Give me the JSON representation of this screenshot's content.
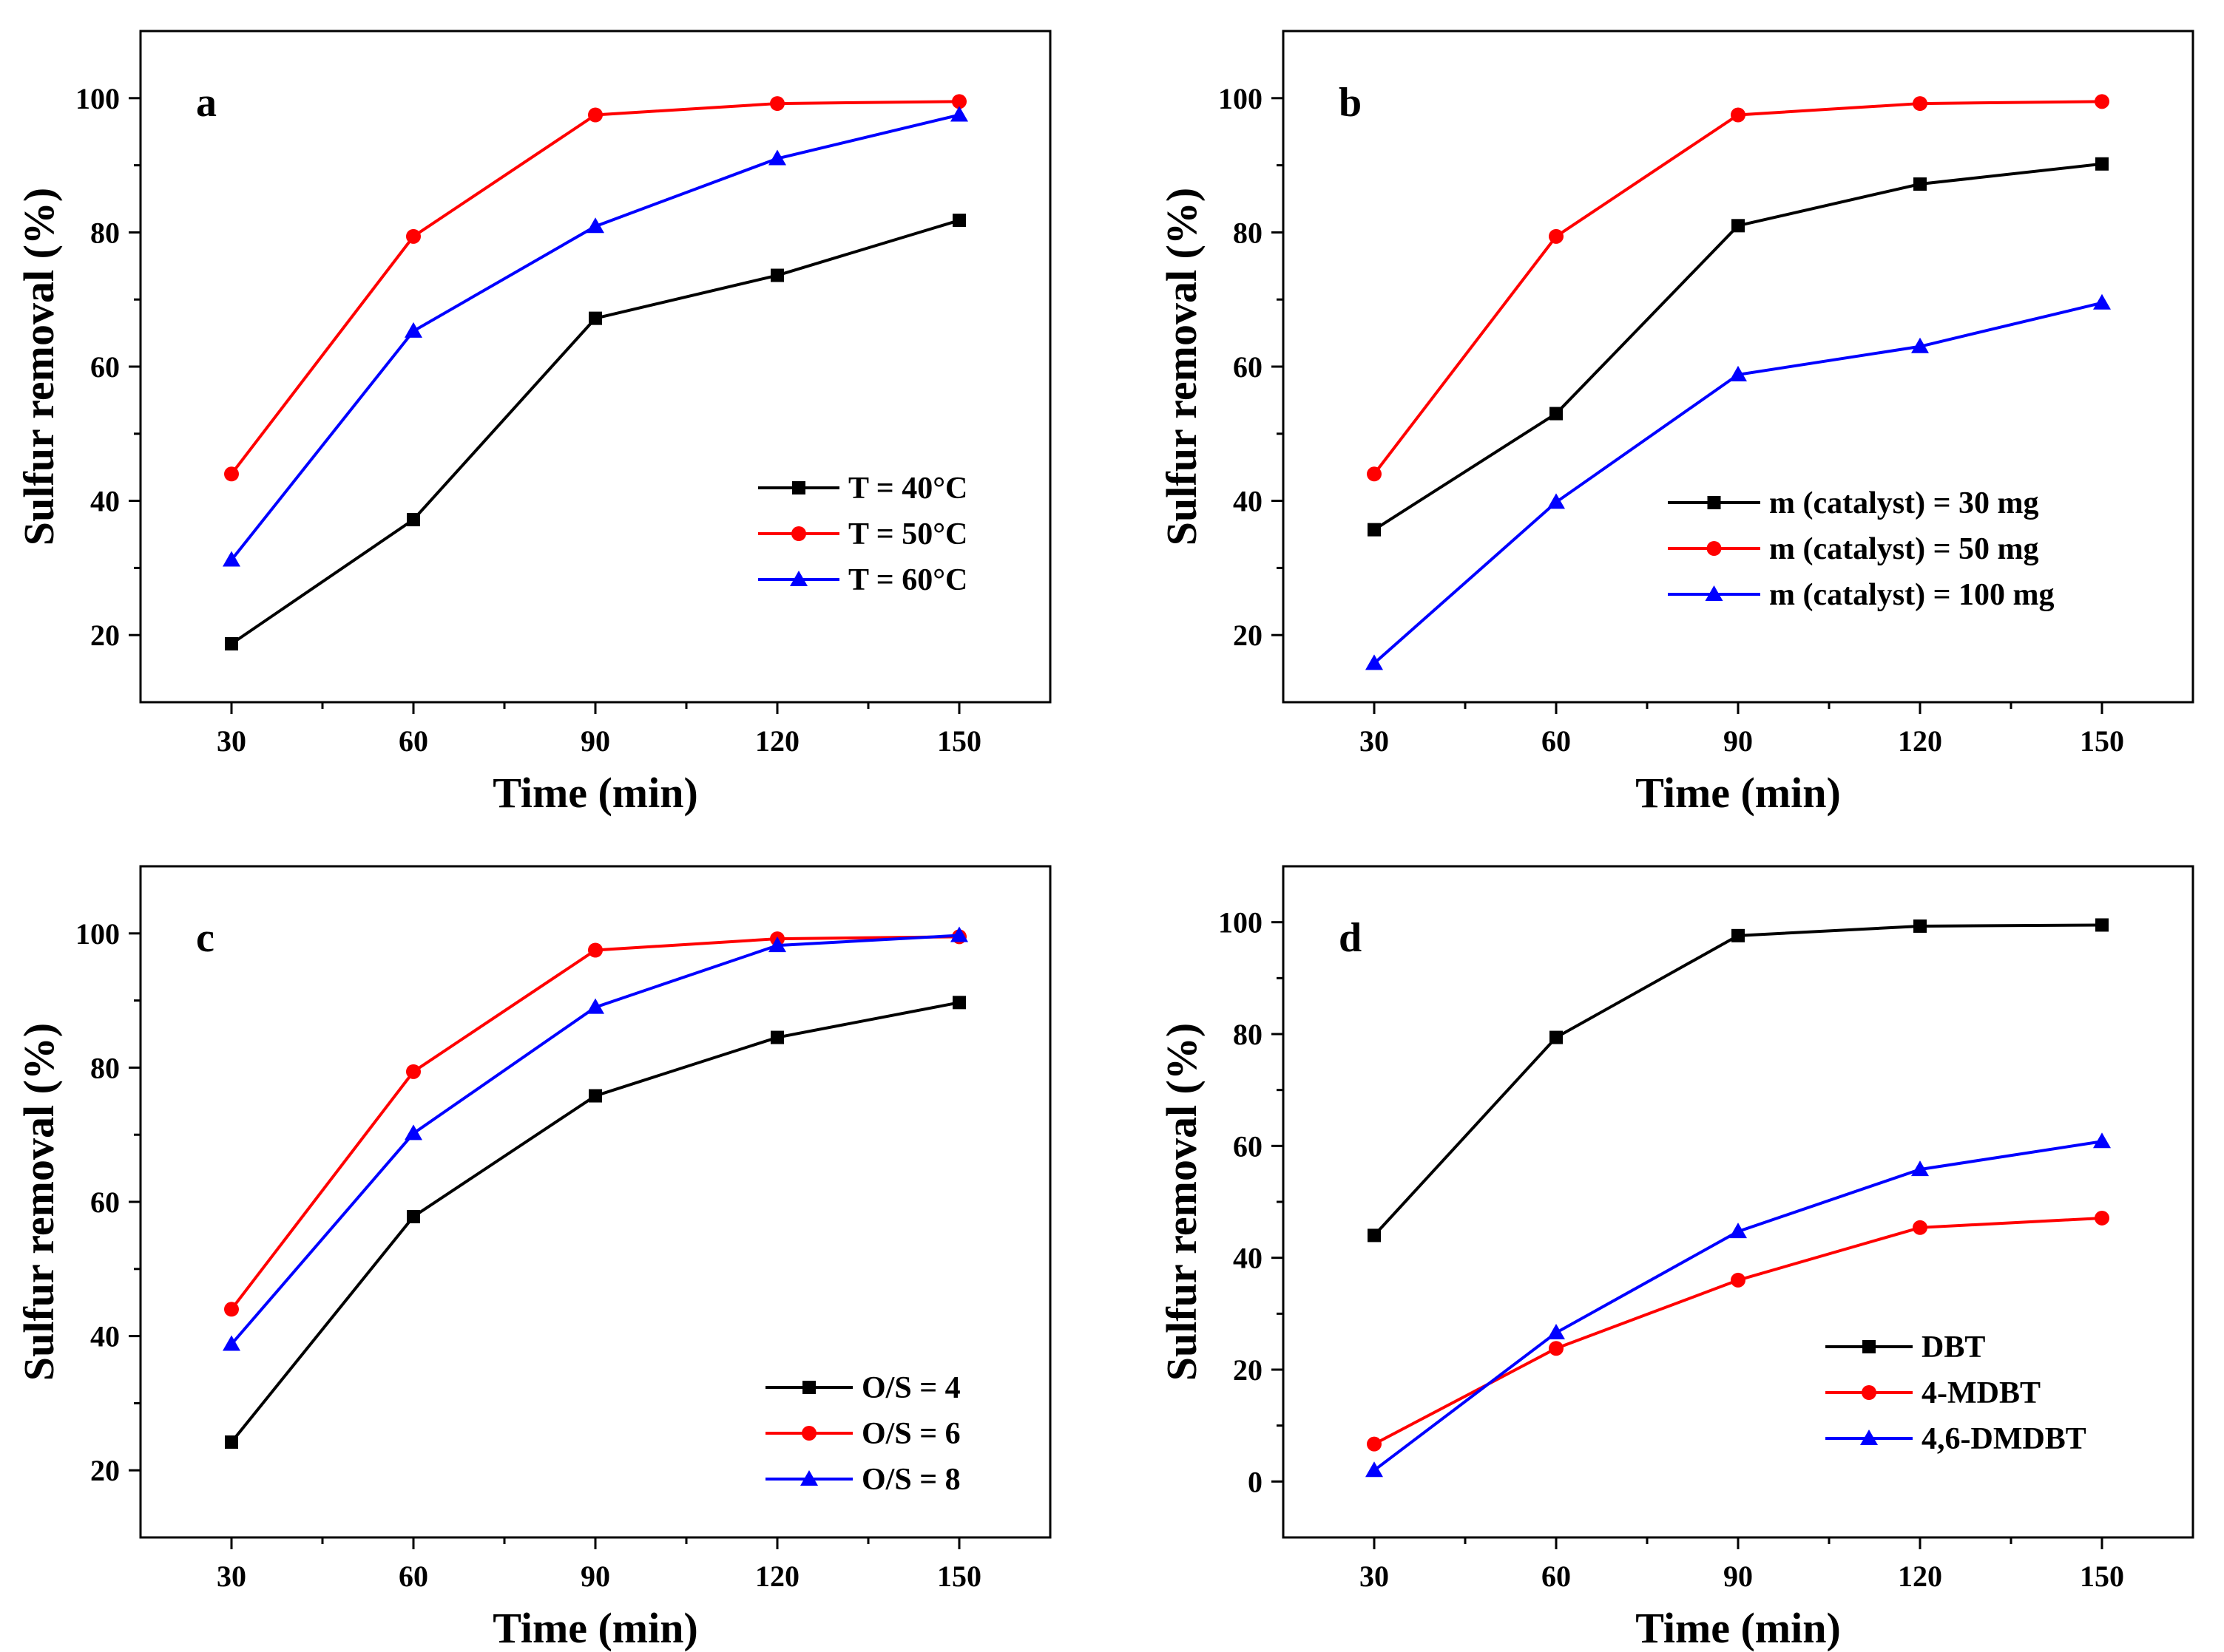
{
  "colors": {
    "black": "#000000",
    "red": "#ff0000",
    "blue": "#0000ff"
  },
  "chart_data": [
    {
      "type": "line",
      "panel": "a",
      "xlabel": "Time (min)",
      "ylabel": "Sulfur removal (%)",
      "x": [
        30,
        60,
        90,
        120,
        150
      ],
      "xticks": [
        30,
        60,
        90,
        120,
        150
      ],
      "xlim": [
        15,
        165
      ],
      "yticks": [
        20,
        40,
        60,
        80,
        100
      ],
      "ylim": [
        10,
        110
      ],
      "legend_position": "center-right",
      "series": [
        {
          "name": "T = 40°C",
          "color": "#000000",
          "marker": "square",
          "values": [
            18.7,
            37.2,
            67.2,
            73.6,
            81.8
          ]
        },
        {
          "name": "T = 50°C",
          "color": "#ff0000",
          "marker": "circle",
          "values": [
            44.0,
            79.4,
            97.5,
            99.2,
            99.5
          ]
        },
        {
          "name": "T = 60°C",
          "color": "#0000ff",
          "marker": "triangle",
          "values": [
            31.2,
            65.3,
            80.9,
            91.0,
            97.5
          ]
        }
      ]
    },
    {
      "type": "line",
      "panel": "b",
      "xlabel": "Time (min)",
      "ylabel": "Sulfur removal (%)",
      "x": [
        30,
        60,
        90,
        120,
        150
      ],
      "xticks": [
        30,
        60,
        90,
        120,
        150
      ],
      "xlim": [
        15,
        165
      ],
      "yticks": [
        20,
        40,
        60,
        80,
        100
      ],
      "ylim": [
        10,
        110
      ],
      "legend_position": "center-right",
      "series": [
        {
          "name": "m (catalyst) = 30 mg",
          "color": "#000000",
          "marker": "square",
          "values": [
            35.7,
            53.0,
            81.0,
            87.2,
            90.2
          ]
        },
        {
          "name": "m (catalyst) = 50 mg",
          "color": "#ff0000",
          "marker": "circle",
          "values": [
            44.0,
            79.4,
            97.5,
            99.2,
            99.5
          ]
        },
        {
          "name": "m (catalyst) = 100 mg",
          "color": "#0000ff",
          "marker": "triangle",
          "values": [
            15.8,
            39.8,
            58.8,
            63.0,
            69.5
          ]
        }
      ]
    },
    {
      "type": "line",
      "panel": "c",
      "xlabel": "Time (min)",
      "ylabel": "Sulfur removal (%)",
      "x": [
        30,
        60,
        90,
        120,
        150
      ],
      "xticks": [
        30,
        60,
        90,
        120,
        150
      ],
      "xlim": [
        15,
        165
      ],
      "yticks": [
        20,
        40,
        60,
        80,
        100
      ],
      "ylim": [
        10,
        110
      ],
      "legend_position": "bottom-right",
      "series": [
        {
          "name": "O/S = 4",
          "color": "#000000",
          "marker": "square",
          "values": [
            24.2,
            57.8,
            75.8,
            84.5,
            89.7
          ]
        },
        {
          "name": "O/S = 6",
          "color": "#ff0000",
          "marker": "circle",
          "values": [
            44.0,
            79.4,
            97.5,
            99.2,
            99.5
          ]
        },
        {
          "name": "O/S = 8",
          "color": "#0000ff",
          "marker": "triangle",
          "values": [
            38.8,
            70.2,
            89.0,
            98.2,
            99.7
          ]
        }
      ]
    },
    {
      "type": "line",
      "panel": "d",
      "xlabel": "Time (min)",
      "ylabel": "Sulfur removal (%)",
      "x": [
        30,
        60,
        90,
        120,
        150
      ],
      "xticks": [
        30,
        60,
        90,
        120,
        150
      ],
      "xlim": [
        15,
        165
      ],
      "yticks": [
        0,
        20,
        40,
        60,
        80,
        100
      ],
      "ylim": [
        -10,
        110
      ],
      "legend_position": "bottom-right",
      "series": [
        {
          "name": "DBT",
          "color": "#000000",
          "marker": "square",
          "values": [
            44.0,
            79.4,
            97.6,
            99.3,
            99.5
          ]
        },
        {
          "name": "4-MDBT",
          "color": "#ff0000",
          "marker": "circle",
          "values": [
            6.7,
            23.8,
            36.0,
            45.4,
            47.1
          ]
        },
        {
          "name": "4,6-DMDBT",
          "color": "#0000ff",
          "marker": "triangle",
          "values": [
            2.0,
            26.6,
            44.7,
            55.8,
            60.8
          ]
        }
      ]
    }
  ]
}
